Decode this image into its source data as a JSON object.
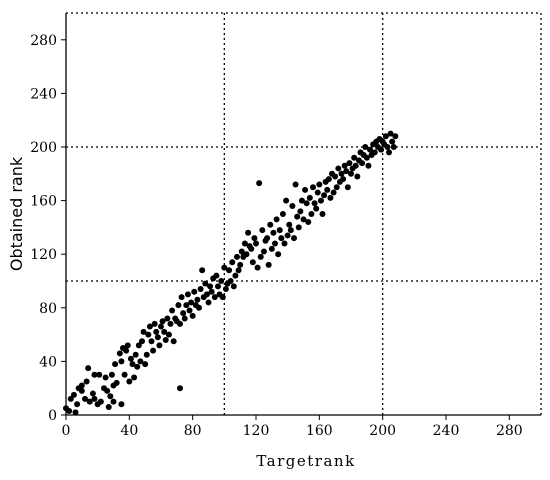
{
  "chart_data": {
    "type": "scatter",
    "title": "",
    "xlabel": "Targetrank",
    "ylabel": "Obtained rank",
    "xlim": [
      0,
      300
    ],
    "ylim": [
      0,
      300
    ],
    "x_ticks": [
      0,
      40,
      80,
      120,
      160,
      200,
      240,
      280
    ],
    "y_ticks": [
      0,
      40,
      80,
      120,
      160,
      200,
      240,
      280
    ],
    "x_tick_labels": [
      "0",
      "40",
      "80",
      "120",
      "160",
      "200",
      "240",
      "280"
    ],
    "y_tick_labels": [
      "0",
      "40",
      "80",
      "120",
      "160",
      "200",
      "240",
      "280"
    ],
    "reference_lines": {
      "vertical": [
        100,
        200,
        300
      ],
      "horizontal": [
        100,
        200,
        300
      ],
      "style": "dotted"
    },
    "grid": false,
    "legend": "none",
    "marker_color": "#000000",
    "points": [
      [
        0,
        5
      ],
      [
        2,
        3
      ],
      [
        3,
        12
      ],
      [
        5,
        15
      ],
      [
        6,
        2
      ],
      [
        7,
        8
      ],
      [
        8,
        20
      ],
      [
        10,
        22
      ],
      [
        10,
        18
      ],
      [
        12,
        12
      ],
      [
        13,
        25
      ],
      [
        14,
        35
      ],
      [
        15,
        10
      ],
      [
        17,
        16
      ],
      [
        18,
        12
      ],
      [
        18,
        30
      ],
      [
        20,
        8
      ],
      [
        21,
        30
      ],
      [
        22,
        10
      ],
      [
        24,
        20
      ],
      [
        25,
        28
      ],
      [
        26,
        18
      ],
      [
        27,
        6
      ],
      [
        28,
        14
      ],
      [
        29,
        30
      ],
      [
        30,
        10
      ],
      [
        30,
        22
      ],
      [
        31,
        38
      ],
      [
        32,
        24
      ],
      [
        34,
        46
      ],
      [
        35,
        8
      ],
      [
        35,
        40
      ],
      [
        36,
        50
      ],
      [
        37,
        30
      ],
      [
        38,
        48
      ],
      [
        39,
        52
      ],
      [
        40,
        25
      ],
      [
        41,
        42
      ],
      [
        42,
        38
      ],
      [
        43,
        28
      ],
      [
        44,
        45
      ],
      [
        45,
        36
      ],
      [
        46,
        52
      ],
      [
        47,
        40
      ],
      [
        48,
        55
      ],
      [
        49,
        62
      ],
      [
        50,
        38
      ],
      [
        51,
        45
      ],
      [
        52,
        60
      ],
      [
        53,
        66
      ],
      [
        54,
        55
      ],
      [
        55,
        48
      ],
      [
        56,
        68
      ],
      [
        57,
        62
      ],
      [
        58,
        58
      ],
      [
        59,
        52
      ],
      [
        60,
        66
      ],
      [
        61,
        70
      ],
      [
        62,
        62
      ],
      [
        63,
        56
      ],
      [
        64,
        72
      ],
      [
        65,
        60
      ],
      [
        66,
        68
      ],
      [
        67,
        78
      ],
      [
        68,
        55
      ],
      [
        69,
        72
      ],
      [
        70,
        70
      ],
      [
        71,
        82
      ],
      [
        72,
        20
      ],
      [
        72,
        68
      ],
      [
        73,
        88
      ],
      [
        74,
        76
      ],
      [
        75,
        72
      ],
      [
        76,
        82
      ],
      [
        77,
        90
      ],
      [
        78,
        78
      ],
      [
        79,
        84
      ],
      [
        80,
        74
      ],
      [
        81,
        92
      ],
      [
        82,
        82
      ],
      [
        83,
        86
      ],
      [
        84,
        80
      ],
      [
        85,
        94
      ],
      [
        86,
        108
      ],
      [
        87,
        88
      ],
      [
        88,
        98
      ],
      [
        89,
        90
      ],
      [
        90,
        84
      ],
      [
        91,
        96
      ],
      [
        92,
        92
      ],
      [
        93,
        102
      ],
      [
        94,
        88
      ],
      [
        95,
        104
      ],
      [
        96,
        96
      ],
      [
        97,
        90
      ],
      [
        98,
        100
      ],
      [
        99,
        88
      ],
      [
        100,
        110
      ],
      [
        101,
        94
      ],
      [
        102,
        98
      ],
      [
        103,
        108
      ],
      [
        104,
        100
      ],
      [
        105,
        114
      ],
      [
        106,
        96
      ],
      [
        107,
        104
      ],
      [
        108,
        118
      ],
      [
        109,
        108
      ],
      [
        110,
        112
      ],
      [
        111,
        122
      ],
      [
        112,
        118
      ],
      [
        113,
        128
      ],
      [
        114,
        120
      ],
      [
        115,
        136
      ],
      [
        116,
        126
      ],
      [
        117,
        124
      ],
      [
        118,
        114
      ],
      [
        119,
        132
      ],
      [
        120,
        128
      ],
      [
        121,
        110
      ],
      [
        122,
        173
      ],
      [
        123,
        118
      ],
      [
        124,
        138
      ],
      [
        125,
        122
      ],
      [
        126,
        130
      ],
      [
        127,
        132
      ],
      [
        128,
        112
      ],
      [
        129,
        142
      ],
      [
        130,
        124
      ],
      [
        131,
        136
      ],
      [
        132,
        128
      ],
      [
        133,
        146
      ],
      [
        134,
        120
      ],
      [
        135,
        138
      ],
      [
        136,
        132
      ],
      [
        137,
        150
      ],
      [
        138,
        128
      ],
      [
        139,
        160
      ],
      [
        140,
        134
      ],
      [
        141,
        142
      ],
      [
        142,
        138
      ],
      [
        143,
        156
      ],
      [
        144,
        132
      ],
      [
        145,
        172
      ],
      [
        146,
        148
      ],
      [
        147,
        140
      ],
      [
        148,
        152
      ],
      [
        149,
        160
      ],
      [
        150,
        146
      ],
      [
        151,
        168
      ],
      [
        152,
        158
      ],
      [
        153,
        144
      ],
      [
        154,
        162
      ],
      [
        155,
        150
      ],
      [
        156,
        170
      ],
      [
        157,
        158
      ],
      [
        158,
        154
      ],
      [
        159,
        166
      ],
      [
        160,
        172
      ],
      [
        161,
        160
      ],
      [
        162,
        150
      ],
      [
        163,
        164
      ],
      [
        164,
        174
      ],
      [
        165,
        168
      ],
      [
        166,
        176
      ],
      [
        167,
        162
      ],
      [
        168,
        180
      ],
      [
        169,
        166
      ],
      [
        170,
        178
      ],
      [
        171,
        170
      ],
      [
        172,
        184
      ],
      [
        173,
        174
      ],
      [
        174,
        180
      ],
      [
        175,
        176
      ],
      [
        176,
        186
      ],
      [
        177,
        182
      ],
      [
        178,
        170
      ],
      [
        179,
        188
      ],
      [
        180,
        180
      ],
      [
        181,
        184
      ],
      [
        182,
        192
      ],
      [
        183,
        186
      ],
      [
        184,
        178
      ],
      [
        185,
        190
      ],
      [
        186,
        196
      ],
      [
        187,
        188
      ],
      [
        188,
        194
      ],
      [
        189,
        200
      ],
      [
        190,
        192
      ],
      [
        191,
        186
      ],
      [
        192,
        198
      ],
      [
        193,
        194
      ],
      [
        194,
        202
      ],
      [
        195,
        196
      ],
      [
        196,
        204
      ],
      [
        197,
        200
      ],
      [
        198,
        206
      ],
      [
        199,
        198
      ],
      [
        200,
        204
      ],
      [
        201,
        202
      ],
      [
        202,
        208
      ],
      [
        203,
        200
      ],
      [
        204,
        196
      ],
      [
        205,
        210
      ],
      [
        206,
        204
      ],
      [
        207,
        200
      ],
      [
        208,
        208
      ]
    ]
  }
}
